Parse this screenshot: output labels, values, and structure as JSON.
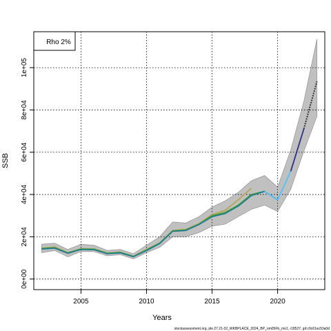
{
  "chart_data": {
    "type": "line",
    "xlabel": "Years",
    "ylabel": "SSB",
    "xlim": [
      2001.4,
      2023.6
    ],
    "ylim": [
      -5000,
      117000
    ],
    "grid": true,
    "legend_placement": "top-left",
    "legend": [
      "Rho 2%"
    ],
    "x_ticks": [
      2005,
      2010,
      2015,
      2020
    ],
    "x_tick_labels": [
      "2005",
      "2010",
      "2015",
      "2020"
    ],
    "y_ticks": [
      0,
      20000,
      40000,
      60000,
      80000,
      100000
    ],
    "y_tick_labels": [
      "0e+00",
      "2e+04",
      "4e+04",
      "6e+04",
      "8e+04",
      "1e+05"
    ],
    "band": {
      "x": [
        2002,
        2003,
        2004,
        2005,
        2006,
        2007,
        2008,
        2009,
        2010,
        2011,
        2012,
        2013,
        2014,
        2015,
        2016,
        2017,
        2018,
        2019,
        2020,
        2021,
        2022,
        2023
      ],
      "lower": [
        12500,
        13500,
        10500,
        13000,
        13000,
        11000,
        11500,
        9500,
        12500,
        15000,
        20000,
        20000,
        22000,
        25000,
        26000,
        29500,
        33000,
        35000,
        32000,
        42500,
        60500,
        77000
      ],
      "upper": [
        16500,
        17000,
        14000,
        16500,
        16000,
        13500,
        14000,
        12000,
        16000,
        20000,
        27000,
        26500,
        29500,
        34000,
        37000,
        41000,
        46500,
        49000,
        43500,
        61000,
        84000,
        113500
      ]
    },
    "series": [
      {
        "color": "#b5a55a",
        "x": [
          2002,
          2003,
          2004,
          2005,
          2006,
          2007,
          2008,
          2009,
          2010,
          2011,
          2012,
          2013,
          2014,
          2015,
          2016,
          2017,
          2018
        ],
        "values": [
          14500,
          15200,
          12500,
          14300,
          14200,
          12300,
          12700,
          10800,
          14000,
          17000,
          23000,
          23500,
          26200,
          30500,
          32500,
          37500,
          43000
        ]
      },
      {
        "color": "#4aa032",
        "x": [
          2002,
          2003,
          2004,
          2005,
          2006,
          2007,
          2008,
          2009,
          2010,
          2011,
          2012,
          2013,
          2014,
          2015,
          2016,
          2017,
          2018,
          2019
        ],
        "values": [
          14500,
          14800,
          12400,
          14200,
          14100,
          12200,
          12600,
          10700,
          13800,
          17000,
          22800,
          23200,
          26000,
          30000,
          31500,
          35000,
          40000,
          41500
        ]
      },
      {
        "color": "#1e7e8c",
        "x": [
          2002,
          2003,
          2004,
          2005,
          2006,
          2007,
          2008,
          2009,
          2010,
          2011,
          2012,
          2013,
          2014,
          2015,
          2016,
          2017,
          2018,
          2019,
          2020
        ],
        "values": [
          14200,
          14600,
          12200,
          14000,
          13900,
          12000,
          12400,
          10600,
          13500,
          16800,
          22600,
          23000,
          25800,
          29500,
          31000,
          34500,
          39500,
          41500,
          37500
        ]
      },
      {
        "color": "#4fc3f7",
        "x": [
          2019,
          2020,
          2021
        ],
        "values": [
          41500,
          37500,
          51000
        ]
      },
      {
        "color": "#2e2e8a",
        "x": [
          2021,
          2022
        ],
        "values": [
          51000,
          71000
        ]
      },
      {
        "color": "#333333",
        "dashed": true,
        "x": [
          2022,
          2023
        ],
        "values": [
          71000,
          93500
        ]
      }
    ],
    "footnote": "stockassessment.org, ple.27.21-32_WKBPLACE_2024_BP_nm05Fb_mo1, r18527, git:c9c61ac53a0d"
  }
}
